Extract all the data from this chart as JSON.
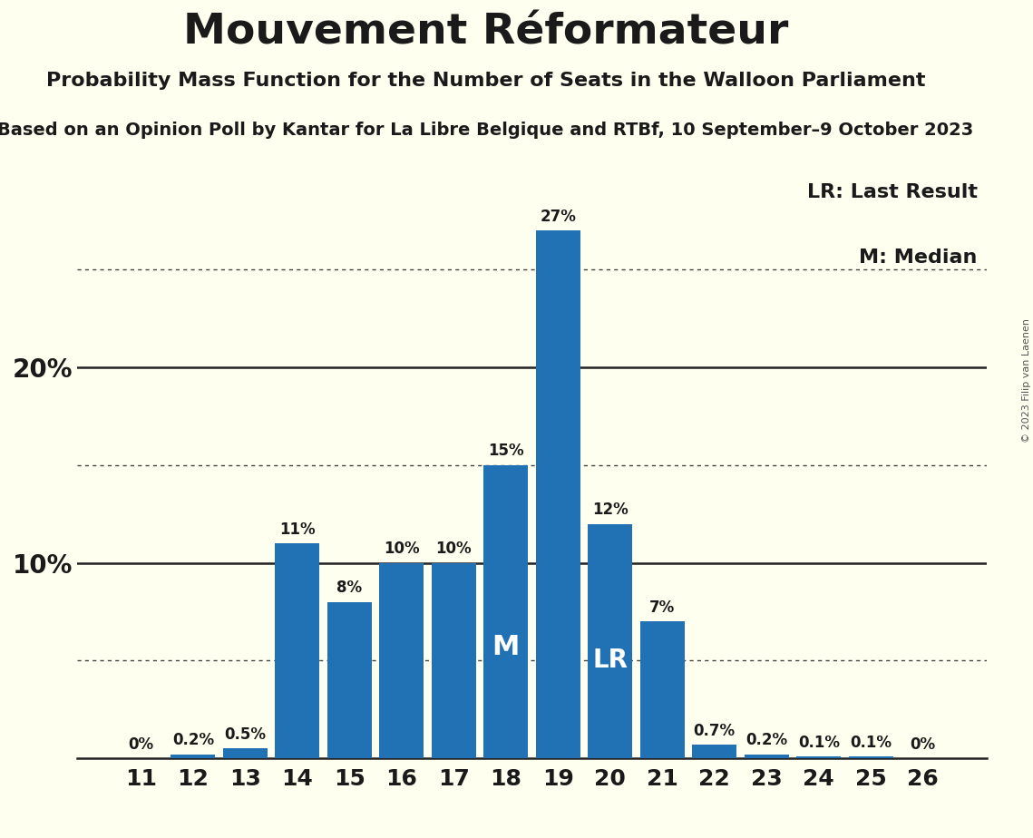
{
  "title": "Mouvement Réformateur",
  "subtitle": "Probability Mass Function for the Number of Seats in the Walloon Parliament",
  "source_line": "Based on an Opinion Poll by Kantar for La Libre Belgique and RTBf, 10 September–9 October 2023",
  "copyright": "© 2023 Filip van Laenen",
  "categories": [
    11,
    12,
    13,
    14,
    15,
    16,
    17,
    18,
    19,
    20,
    21,
    22,
    23,
    24,
    25,
    26
  ],
  "values": [
    0.0,
    0.2,
    0.5,
    11.0,
    8.0,
    10.0,
    10.0,
    15.0,
    27.0,
    12.0,
    7.0,
    0.7,
    0.2,
    0.1,
    0.1,
    0.0
  ],
  "bar_color": "#2171b5",
  "background_color": "#fffff0",
  "label_color": "#1a1a1a",
  "dotted_lines": [
    5,
    15,
    25
  ],
  "solid_lines": [
    10,
    20
  ],
  "median_seat": 18,
  "last_result_seat": 20,
  "legend_lr": "LR: Last Result",
  "legend_m": "M: Median",
  "ylim": [
    0,
    30
  ],
  "bar_labels": [
    "0%",
    "0.2%",
    "0.5%",
    "11%",
    "8%",
    "10%",
    "10%",
    "15%",
    "27%",
    "12%",
    "7%",
    "0.7%",
    "0.2%",
    "0.1%",
    "0.1%",
    "0%"
  ],
  "title_fontsize": 34,
  "subtitle_fontsize": 16,
  "source_fontsize": 14,
  "xtick_fontsize": 18,
  "ytick_fontsize": 20,
  "bar_label_fontsize": 12,
  "legend_fontsize": 16
}
